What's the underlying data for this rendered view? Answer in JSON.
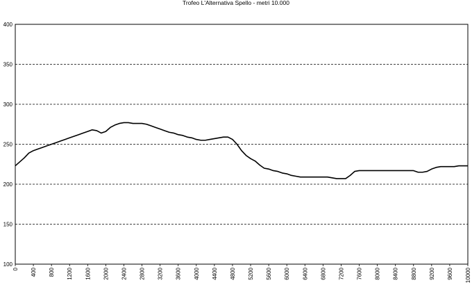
{
  "chart_data": {
    "type": "line",
    "title": "Trofeo L'Alternativa Spello - metri 10.000",
    "xlabel": "",
    "ylabel": "",
    "xlim": [
      0,
      10000
    ],
    "ylim": [
      100,
      400
    ],
    "y_ticks": [
      "100",
      "150",
      "200",
      "250",
      "300",
      "350",
      "400"
    ],
    "x_ticks": [
      "0",
      "400",
      "800",
      "1200",
      "1600",
      "2000",
      "2400",
      "2800",
      "3200",
      "3600",
      "4000",
      "4400",
      "4800",
      "5200",
      "5600",
      "6000",
      "6400",
      "6800",
      "7200",
      "7600",
      "8000",
      "8400",
      "8800",
      "9200",
      "9600",
      "10000"
    ],
    "grid": "horizontal dashed",
    "legend": "none",
    "line_color": "#000000",
    "series": [
      {
        "x": [
          0,
          100,
          200,
          300,
          400,
          500,
          600,
          700,
          800,
          900,
          1000,
          1100,
          1200,
          1300,
          1400,
          1500,
          1600,
          1700,
          1800,
          1900,
          2000,
          2100,
          2200,
          2300,
          2400,
          2500,
          2600,
          2700,
          2800,
          2900,
          3000,
          3100,
          3200,
          3300,
          3400,
          3500,
          3600,
          3700,
          3800,
          3900,
          4000,
          4100,
          4200,
          4300,
          4400,
          4500,
          4600,
          4700,
          4800,
          4900,
          5000,
          5100,
          5200,
          5300,
          5400,
          5500,
          5600,
          5700,
          5800,
          5900,
          6000,
          6100,
          6200,
          6300,
          6400,
          6500,
          6600,
          6700,
          6800,
          6900,
          7000,
          7100,
          7200,
          7300,
          7400,
          7500,
          7600,
          7700,
          7800,
          7900,
          8000,
          8100,
          8200,
          8300,
          8400,
          8500,
          8600,
          8700,
          8800,
          8900,
          9000,
          9100,
          9200,
          9300,
          9400,
          9500,
          9600,
          9700,
          9800,
          9900,
          10000
        ],
        "values": [
          223,
          228,
          233,
          239,
          242,
          244,
          246,
          248,
          250,
          252,
          254,
          256,
          258,
          260,
          262,
          264,
          266,
          268,
          267,
          264,
          266,
          271,
          274,
          276,
          277,
          277,
          276,
          276,
          276,
          275,
          273,
          271,
          269,
          267,
          265,
          264,
          262,
          261,
          259,
          258,
          256,
          255,
          255,
          256,
          257,
          258,
          259,
          259,
          256,
          250,
          242,
          236,
          232,
          229,
          224,
          220,
          219,
          217,
          216,
          214,
          213,
          211,
          210,
          209,
          209,
          209,
          209,
          209,
          209,
          209,
          208,
          207,
          207,
          207,
          211,
          216,
          217,
          217,
          217,
          217,
          217,
          217,
          217,
          217,
          217,
          217,
          217,
          217,
          217,
          215,
          215,
          216,
          219,
          221,
          222,
          222,
          222,
          222,
          223,
          223,
          223
        ]
      }
    ]
  }
}
